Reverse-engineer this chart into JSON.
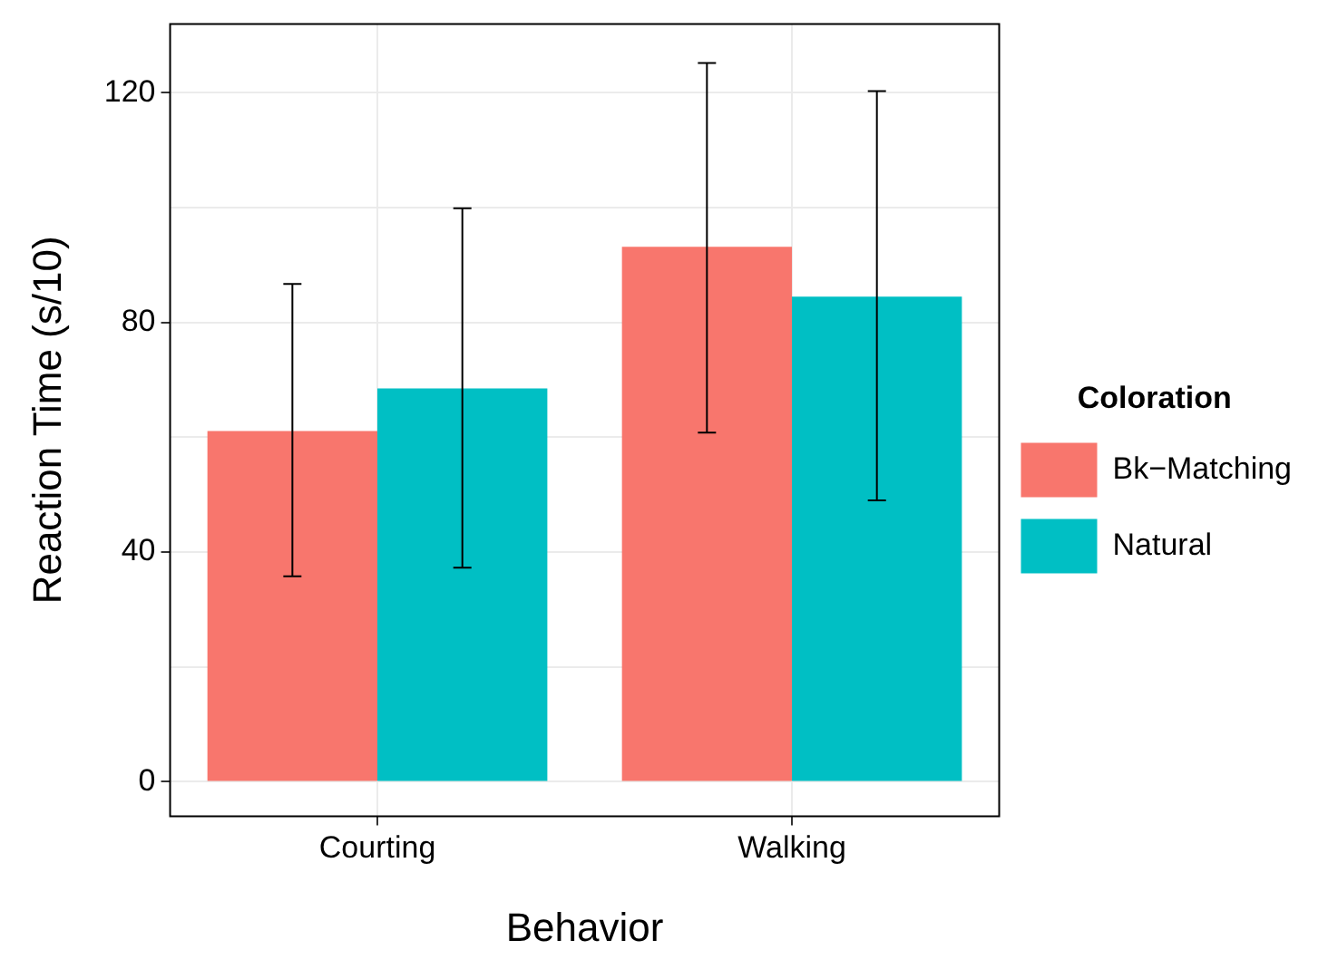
{
  "chart_data": {
    "type": "bar",
    "xlabel": "Behavior",
    "ylabel": "Reaction Time (s/10)",
    "legend_title": "Coloration",
    "categories": [
      "Courting",
      "Walking"
    ],
    "series": [
      {
        "name": "Bk−Matching",
        "color": "#f8766d",
        "values": [
          61.1,
          93.2
        ],
        "errors": [
          [
            35.8,
            86.7
          ],
          [
            60.8,
            125.2
          ]
        ]
      },
      {
        "name": "Natural",
        "color": "#00bfc4",
        "values": [
          68.5,
          84.5
        ],
        "errors": [
          [
            37.3,
            99.9
          ],
          [
            49.0,
            120.3
          ]
        ]
      }
    ],
    "ylim": [
      -6,
      132
    ],
    "yticks": [
      0,
      {
        "value": 20,
        "label": null
      },
      40,
      {
        "value": 60,
        "label": null
      },
      80,
      {
        "value": 100,
        "label": null
      },
      120
    ],
    "grid": true,
    "legend": "right"
  }
}
